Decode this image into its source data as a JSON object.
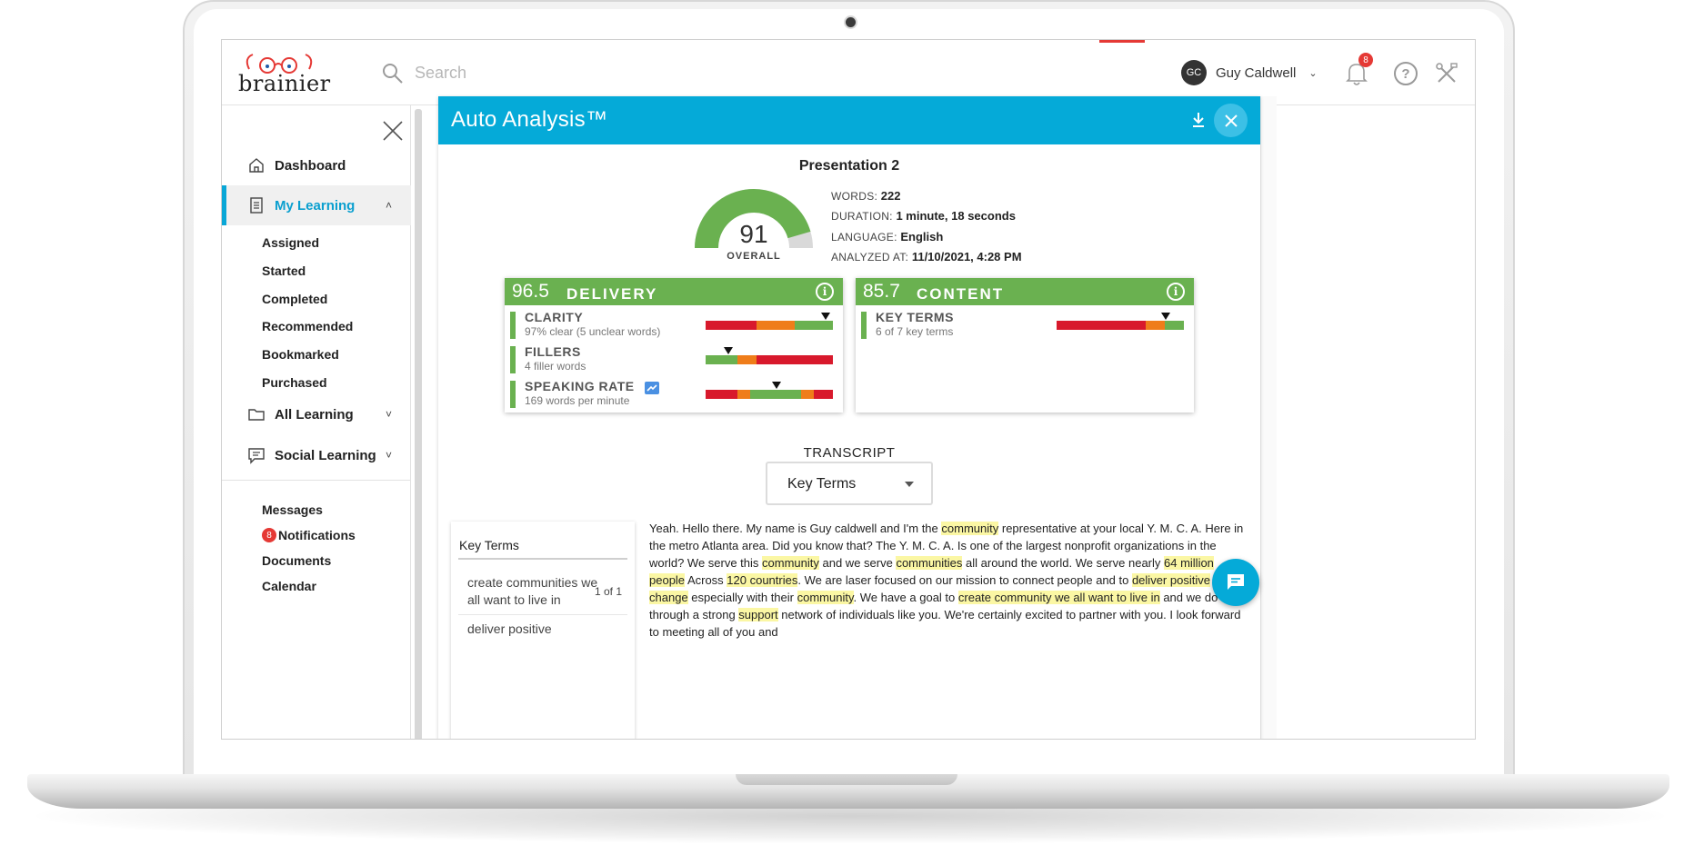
{
  "app": {
    "brand": "brainier",
    "search_placeholder": "Search",
    "user": {
      "initials": "GC",
      "name": "Guy Caldwell"
    },
    "notifications_count": "8",
    "help_label": "?"
  },
  "sidebar": {
    "dashboard": "Dashboard",
    "my_learning": "My Learning",
    "sub_items": [
      "Assigned",
      "Started",
      "Completed",
      "Recommended",
      "Bookmarked",
      "Purchased"
    ],
    "all_learning": "All Learning",
    "social_learning": "Social Learning",
    "bottom": {
      "messages": "Messages",
      "notifications_badge": "8",
      "notifications": "Notifications",
      "documents": "Documents",
      "calendar": "Calendar"
    }
  },
  "modal": {
    "title": "Auto Analysis™",
    "presentation_title": "Presentation 2",
    "overall_score": "91",
    "overall_label": "OVERALL",
    "overall_fraction": 0.91,
    "meta": {
      "words_label": "WORDS:",
      "words": "222",
      "duration_label": "DURATION:",
      "duration": "1 minute, 18 seconds",
      "language_label": "LANGUAGE:",
      "language": "English",
      "analyzed_label": "ANALYZED AT:",
      "analyzed": "11/10/2021, 4:28 PM"
    },
    "delivery": {
      "score": "96.5",
      "label": "DELIVERY",
      "info": "i",
      "metrics": [
        {
          "name": "CLARITY",
          "sub": "97% clear (5 unclear words)",
          "marker": 0.94,
          "segments": [
            {
              "color": "#d8192c",
              "w": 0.4
            },
            {
              "color": "#ef7d1a",
              "w": 0.3
            },
            {
              "color": "#6ab150",
              "w": 0.3
            }
          ]
        },
        {
          "name": "FILLERS",
          "sub": "4 filler words",
          "marker": 0.18,
          "segments": [
            {
              "color": "#6ab150",
              "w": 0.25
            },
            {
              "color": "#ef7d1a",
              "w": 0.15
            },
            {
              "color": "#d8192c",
              "w": 0.6
            }
          ]
        },
        {
          "name": "SPEAKING RATE",
          "sub": "169 words per minute",
          "marker": 0.56,
          "segments": [
            {
              "color": "#d8192c",
              "w": 0.25
            },
            {
              "color": "#ef7d1a",
              "w": 0.1
            },
            {
              "color": "#6ab150",
              "w": 0.4
            },
            {
              "color": "#ef7d1a",
              "w": 0.1
            },
            {
              "color": "#d8192c",
              "w": 0.15
            }
          ]
        }
      ]
    },
    "content": {
      "score": "85.7",
      "label": "CONTENT",
      "info": "i",
      "metrics": [
        {
          "name": "KEY TERMS",
          "sub": "6 of 7 key terms",
          "marker": 0.86,
          "segments": [
            {
              "color": "#d8192c",
              "w": 0.7
            },
            {
              "color": "#ef7d1a",
              "w": 0.15
            },
            {
              "color": "#6ab150",
              "w": 0.15
            }
          ]
        }
      ]
    },
    "transcript_label": "TRANSCRIPT",
    "dropdown_value": "Key Terms",
    "key_terms_panel": {
      "title": "Key Terms",
      "rows": [
        {
          "term": "create communities we all want to live in",
          "count": "1 of 1"
        },
        {
          "term": "deliver positive",
          "count": ""
        }
      ]
    },
    "transcript": [
      {
        "t": "Yeah. Hello there. My name is Guy caldwell and I'm the ",
        "h": false
      },
      {
        "t": "community",
        "h": true
      },
      {
        "t": " representative at your local Y. M. C. A. Here in the metro Atlanta area. Did you know that? The Y. M. C. A. Is one of the largest nonprofit organizations in the world? We serve this ",
        "h": false
      },
      {
        "t": "community",
        "h": true
      },
      {
        "t": " and we serve ",
        "h": false
      },
      {
        "t": "communities",
        "h": true
      },
      {
        "t": " all around the world. We serve nearly ",
        "h": false
      },
      {
        "t": "64 million people",
        "h": true
      },
      {
        "t": " Across ",
        "h": false
      },
      {
        "t": "120 countries",
        "h": true
      },
      {
        "t": ". We are laser focused on our mission to connect people and to ",
        "h": false
      },
      {
        "t": "deliver positive change",
        "h": true
      },
      {
        "t": " especially with their ",
        "h": false
      },
      {
        "t": "community",
        "h": true
      },
      {
        "t": ". We have a goal to ",
        "h": false
      },
      {
        "t": "create community we all want to live in",
        "h": true
      },
      {
        "t": " and we do that through a strong ",
        "h": false
      },
      {
        "t": "support",
        "h": true
      },
      {
        "t": " network of individuals like you. We're certainly excited to partner with you. I look forward to meeting all of you and",
        "h": false
      }
    ]
  },
  "colors": {
    "accent": "#05aad8",
    "green": "#6ab150",
    "orange": "#ef7d1a",
    "red": "#d8192c",
    "highlight": "#fbf7a4"
  },
  "icons": [
    "search-icon",
    "bell-icon",
    "help-icon",
    "tools-icon",
    "close-icon",
    "home-icon",
    "document-icon",
    "folder-icon",
    "chat-icon",
    "download-icon",
    "info-icon",
    "trend-icon"
  ]
}
